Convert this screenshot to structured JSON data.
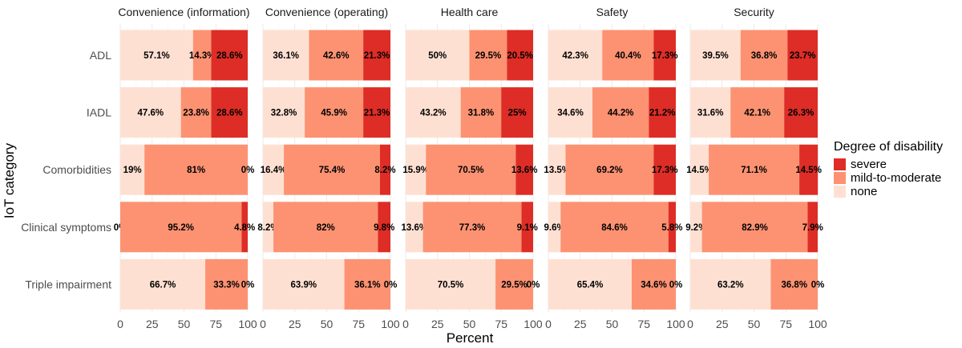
{
  "chart_data": {
    "type": "bar",
    "orientation": "horizontal",
    "stacked": true,
    "facet_titles": [
      "Convenience (information)",
      "Convenience (operating)",
      "Health care",
      "Safety",
      "Security"
    ],
    "categories": [
      "ADL",
      "IADL",
      "Comorbidities",
      "Clinical symptoms",
      "Triple impairment"
    ],
    "xlabel": "Percent",
    "ylabel": "IoT category",
    "xlim": [
      0,
      100
    ],
    "xticks": [
      "0",
      "25",
      "50",
      "75",
      "100"
    ],
    "legend": {
      "title": "Degree of disability",
      "position": "right",
      "entries": [
        {
          "name": "severe",
          "color": "#de2d26"
        },
        {
          "name": "mild-to-moderate",
          "color": "#fc9272"
        },
        {
          "name": "none",
          "color": "#fee0d2"
        }
      ]
    },
    "stack_order": [
      "none",
      "mild-to-moderate",
      "severe"
    ],
    "colors": {
      "none": "#fee0d2",
      "mild-to-moderate": "#fc9272",
      "severe": "#de2d26"
    },
    "facets": [
      {
        "title": "Convenience (information)",
        "rows": [
          {
            "category": "ADL",
            "none": 57.1,
            "mild": 14.3,
            "severe": 28.6,
            "labels": [
              "57.1%",
              "14.3%",
              "28.6%"
            ]
          },
          {
            "category": "IADL",
            "none": 47.6,
            "mild": 23.8,
            "severe": 28.6,
            "labels": [
              "47.6%",
              "23.8%",
              "28.6%"
            ]
          },
          {
            "category": "Comorbidities",
            "none": 19,
            "mild": 81,
            "severe": 0,
            "labels": [
              "19%",
              "81%",
              "0%"
            ]
          },
          {
            "category": "Clinical symptoms",
            "none": 0,
            "mild": 95.2,
            "severe": 4.8,
            "labels": [
              "0%",
              "95.2%",
              "4.8%"
            ]
          },
          {
            "category": "Triple impairment",
            "none": 66.7,
            "mild": 33.3,
            "severe": 0,
            "labels": [
              "66.7%",
              "33.3%",
              "0%"
            ]
          }
        ]
      },
      {
        "title": "Convenience (operating)",
        "rows": [
          {
            "category": "ADL",
            "none": 36.1,
            "mild": 42.6,
            "severe": 21.3,
            "labels": [
              "36.1%",
              "42.6%",
              "21.3%"
            ]
          },
          {
            "category": "IADL",
            "none": 32.8,
            "mild": 45.9,
            "severe": 21.3,
            "labels": [
              "32.8%",
              "45.9%",
              "21.3%"
            ]
          },
          {
            "category": "Comorbidities",
            "none": 16.4,
            "mild": 75.4,
            "severe": 8.2,
            "labels": [
              "16.4%",
              "75.4%",
              "8.2%"
            ]
          },
          {
            "category": "Clinical symptoms",
            "none": 8.2,
            "mild": 82,
            "severe": 9.8,
            "labels": [
              "8.2%",
              "82%",
              "9.8%"
            ]
          },
          {
            "category": "Triple impairment",
            "none": 63.9,
            "mild": 36.1,
            "severe": 0,
            "labels": [
              "63.9%",
              "36.1%",
              "0%"
            ]
          }
        ]
      },
      {
        "title": "Health care",
        "rows": [
          {
            "category": "ADL",
            "none": 50,
            "mild": 29.5,
            "severe": 20.5,
            "labels": [
              "50%",
              "29.5%",
              "20.5%"
            ]
          },
          {
            "category": "IADL",
            "none": 43.2,
            "mild": 31.8,
            "severe": 25,
            "labels": [
              "43.2%",
              "31.8%",
              "25%"
            ]
          },
          {
            "category": "Comorbidities",
            "none": 15.9,
            "mild": 70.5,
            "severe": 13.6,
            "labels": [
              "15.9%",
              "70.5%",
              "13.6%"
            ]
          },
          {
            "category": "Clinical symptoms",
            "none": 13.6,
            "mild": 77.3,
            "severe": 9.1,
            "labels": [
              "13.6%",
              "77.3%",
              "9.1%"
            ]
          },
          {
            "category": "Triple impairment",
            "none": 70.5,
            "mild": 29.5,
            "severe": 0,
            "labels": [
              "70.5%",
              "29.5%",
              "0%"
            ]
          }
        ]
      },
      {
        "title": "Safety",
        "rows": [
          {
            "category": "ADL",
            "none": 42.3,
            "mild": 40.4,
            "severe": 17.3,
            "labels": [
              "42.3%",
              "40.4%",
              "17.3%"
            ]
          },
          {
            "category": "IADL",
            "none": 34.6,
            "mild": 44.2,
            "severe": 21.2,
            "labels": [
              "34.6%",
              "44.2%",
              "21.2%"
            ]
          },
          {
            "category": "Comorbidities",
            "none": 13.5,
            "mild": 69.2,
            "severe": 17.3,
            "labels": [
              "13.5%",
              "69.2%",
              "17.3%"
            ]
          },
          {
            "category": "Clinical symptoms",
            "none": 9.6,
            "mild": 84.6,
            "severe": 5.8,
            "labels": [
              "9.6%",
              "84.6%",
              "5.8%"
            ]
          },
          {
            "category": "Triple impairment",
            "none": 65.4,
            "mild": 34.6,
            "severe": 0,
            "labels": [
              "65.4%",
              "34.6%",
              "0%"
            ]
          }
        ]
      },
      {
        "title": "Security",
        "rows": [
          {
            "category": "ADL",
            "none": 39.5,
            "mild": 36.8,
            "severe": 23.7,
            "labels": [
              "39.5%",
              "36.8%",
              "23.7%"
            ]
          },
          {
            "category": "IADL",
            "none": 31.6,
            "mild": 42.1,
            "severe": 26.3,
            "labels": [
              "31.6%",
              "42.1%",
              "26.3%"
            ]
          },
          {
            "category": "Comorbidities",
            "none": 14.5,
            "mild": 71.1,
            "severe": 14.5,
            "labels": [
              "14.5%",
              "71.1%",
              "14.5%"
            ]
          },
          {
            "category": "Clinical symptoms",
            "none": 9.2,
            "mild": 82.9,
            "severe": 7.9,
            "labels": [
              "9.2%",
              "82.9%",
              "7.9%"
            ]
          },
          {
            "category": "Triple impairment",
            "none": 63.2,
            "mild": 36.8,
            "severe": 0,
            "labels": [
              "63.2%",
              "36.8%",
              "0%"
            ]
          }
        ]
      }
    ]
  }
}
